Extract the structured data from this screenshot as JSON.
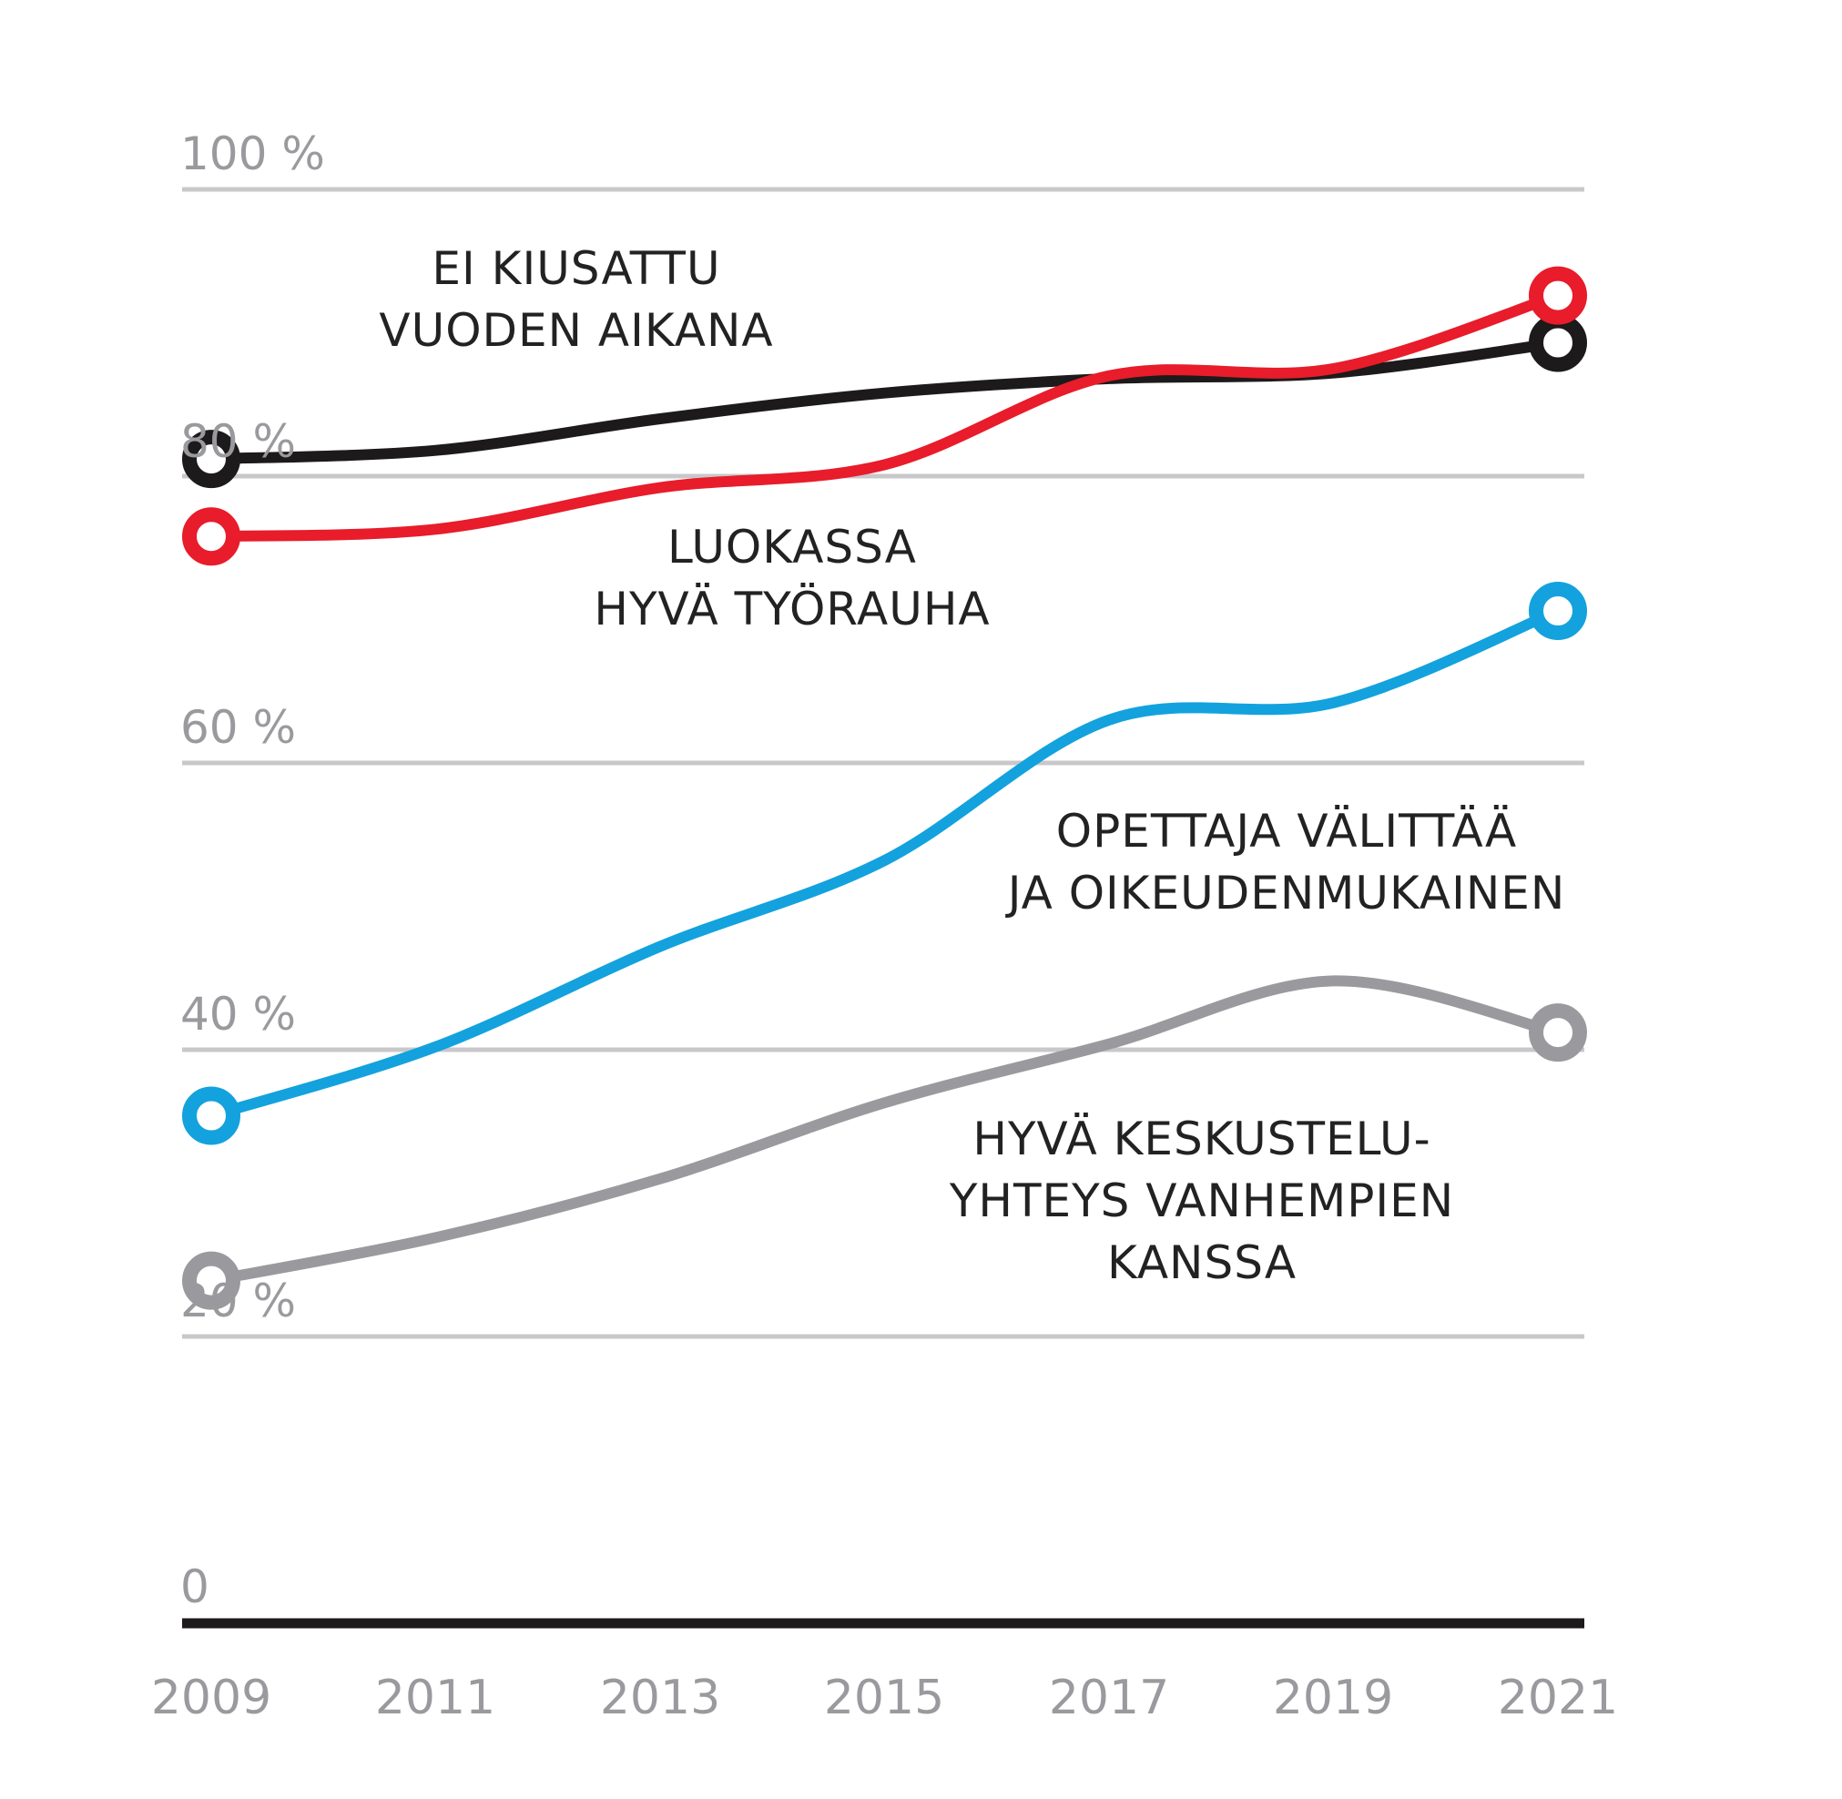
{
  "chart_data": {
    "type": "line",
    "x": [
      2009,
      2011,
      2013,
      2015,
      2017,
      2019,
      2021
    ],
    "x_tick_labels": [
      "2009",
      "2011",
      "2013",
      "2015",
      "2017",
      "2019",
      "2021"
    ],
    "y_tick_labels": [
      "0",
      "20 %",
      "40 %",
      "60 %",
      "80 %",
      "100 %"
    ],
    "ylim": [
      0,
      100
    ],
    "grid": true,
    "series": [
      {
        "name_lines": [
          "EI KIUSATTU",
          "VUODEN AIKANA"
        ],
        "color": "#1c1a1a",
        "values": [
          81.2,
          81.8,
          84.0,
          85.8,
          86.8,
          87.2,
          89.3
        ]
      },
      {
        "name_lines": [
          "LUOKASSA",
          "HYVÄ TYÖRAUHA"
        ],
        "color": "#e81c2a",
        "values": [
          75.8,
          76.3,
          79.2,
          80.8,
          87.0,
          87.5,
          92.6
        ]
      },
      {
        "name_lines": [
          "OPETTAJA VÄLITTÄÄ",
          "JA OIKEUDENMUKAINEN"
        ],
        "color": "#13a2dd",
        "values": [
          35.4,
          40.2,
          47.2,
          53.2,
          63.0,
          64.2,
          70.6
        ]
      },
      {
        "name_lines": [
          "HYVÄ KESKUSTELU-",
          "YHTEYS VANHEMPIEN",
          "KANSSA"
        ],
        "color": "#9a9a9e",
        "values": [
          23.9,
          26.9,
          31.0,
          36.3,
          40.4,
          44.8,
          41.2
        ]
      }
    ]
  }
}
